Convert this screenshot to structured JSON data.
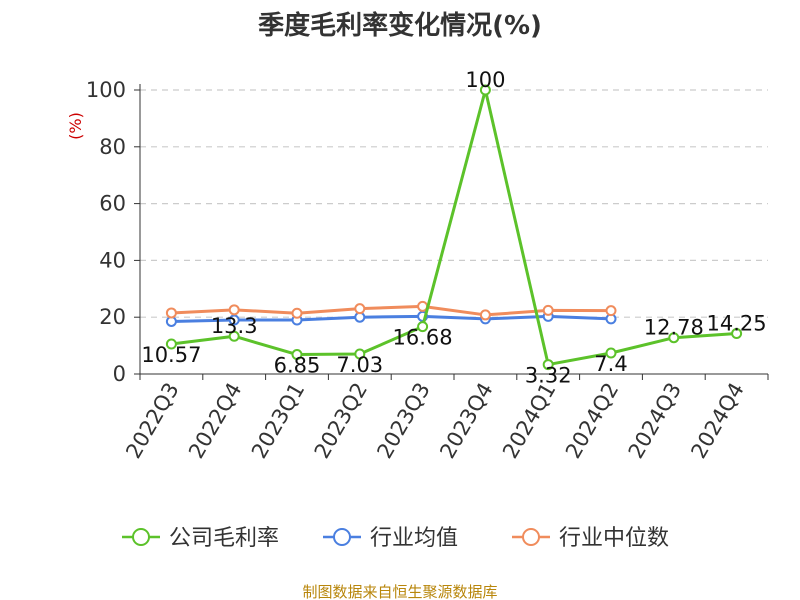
{
  "chart_data": {
    "type": "line",
    "title": "季度毛利率变化情况(%)",
    "ylabel": "(%)",
    "ylim": [
      0,
      100
    ],
    "yticks": [
      0,
      20,
      40,
      60,
      80,
      100
    ],
    "grid": true,
    "categories": [
      "2022Q3",
      "2022Q4",
      "2023Q1",
      "2023Q2",
      "2023Q3",
      "2023Q4",
      "2024Q1",
      "2024Q2",
      "2024Q3",
      "2024Q4"
    ],
    "series": [
      {
        "name": "公司毛利率",
        "color": "#5cc22a",
        "values": [
          10.57,
          13.3,
          6.85,
          7.03,
          16.68,
          100,
          3.32,
          7.4,
          12.78,
          14.25
        ],
        "labels": [
          "10.57",
          "13.3",
          "6.85",
          "7.03",
          "16.68",
          "100",
          "3.32",
          "7.4",
          "12.78",
          "14.25"
        ]
      },
      {
        "name": "行业均值",
        "color": "#4a7fe0",
        "values": [
          18.5,
          19.0,
          19.0,
          20.0,
          20.3,
          19.4,
          20.3,
          19.4,
          null,
          null
        ]
      },
      {
        "name": "行业中位数",
        "color": "#f08c5c",
        "values": [
          21.5,
          22.6,
          21.4,
          23.0,
          23.8,
          20.8,
          22.4,
          22.3,
          null,
          null
        ]
      }
    ],
    "legend_position": "bottom",
    "source": "制图数据来自恒生聚源数据库"
  }
}
